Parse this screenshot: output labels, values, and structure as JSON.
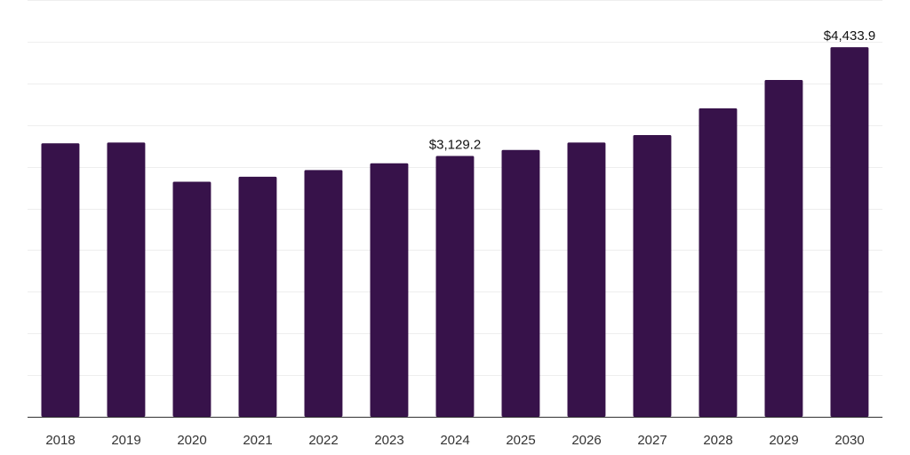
{
  "chart_data": {
    "type": "bar",
    "categories": [
      "2018",
      "2019",
      "2020",
      "2021",
      "2022",
      "2023",
      "2024",
      "2025",
      "2026",
      "2027",
      "2028",
      "2029",
      "2030"
    ],
    "values": [
      3280,
      3290,
      2820,
      2880,
      2960,
      3040,
      3129.2,
      3200,
      3290,
      3380,
      3700,
      4040,
      4433.9
    ],
    "data_labels": [
      null,
      null,
      null,
      null,
      null,
      null,
      "$3,129.2",
      null,
      null,
      null,
      null,
      null,
      "$4,433.9"
    ],
    "title": "",
    "xlabel": "",
    "ylabel": "",
    "ylim": [
      0,
      5000
    ],
    "grid": true,
    "legend": "none",
    "bar_color": "#37124a",
    "gridline_color": "#eeeeee",
    "axis_color": "#333333"
  }
}
